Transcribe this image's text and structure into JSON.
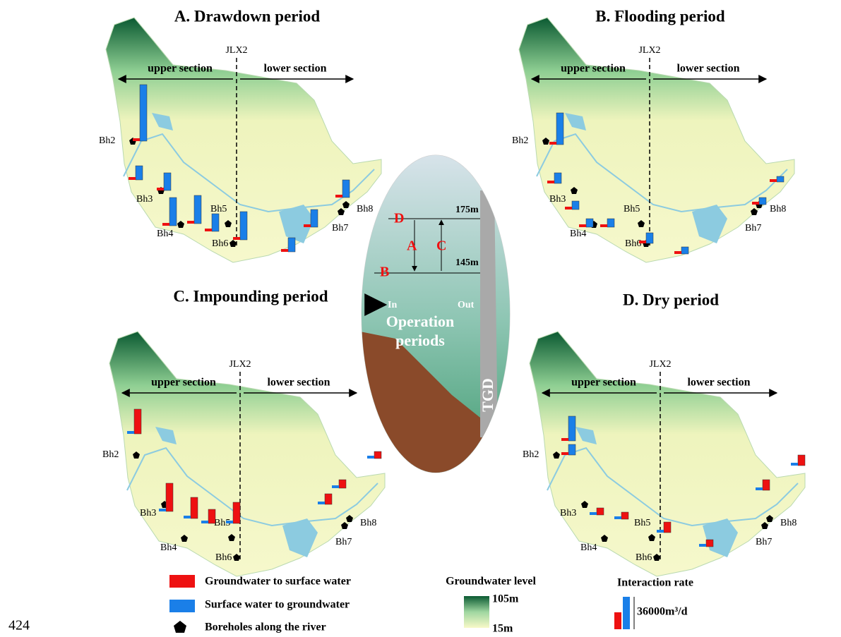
{
  "panels": [
    {
      "title": "A. Drawdown period",
      "site": "JLX2",
      "upper": "upper section",
      "lower": "lower section",
      "boreholes": [
        "Bh2",
        "Bh3",
        "Bh4",
        "Bh5",
        "Bh6",
        "Bh7",
        "Bh8"
      ]
    },
    {
      "title": "B. Flooding period",
      "site": "JLX2",
      "upper": "upper section",
      "lower": "lower section",
      "boreholes": [
        "Bh2",
        "Bh3",
        "Bh4",
        "Bh5",
        "Bh6",
        "Bh7",
        "Bh8"
      ]
    },
    {
      "title": "C. Impounding period",
      "site": "JLX2",
      "upper": "upper section",
      "lower": "lower section",
      "boreholes": [
        "Bh2",
        "Bh3",
        "Bh4",
        "Bh5",
        "Bh6",
        "Bh7",
        "Bh8"
      ]
    },
    {
      "title": "D. Dry  period",
      "site": "JLX2",
      "upper": "upper section",
      "lower": "lower section",
      "boreholes": [
        "Bh2",
        "Bh3",
        "Bh4",
        "Bh5",
        "Bh6",
        "Bh7",
        "Bh8"
      ]
    }
  ],
  "center": {
    "levels": [
      "D",
      "A",
      "C",
      "B"
    ],
    "high": "175m",
    "low": "145m",
    "in": "In",
    "out": "Out",
    "caption": [
      "Operation",
      "periods"
    ],
    "dam": "TGD"
  },
  "legend": {
    "gw_to_sw": "Groundwater to surface water",
    "sw_to_gw": "Surface water to groundwater",
    "boreholes": "Boreholes along the river",
    "level_title": "Groundwater level",
    "level_max": "105m",
    "level_min": "15m",
    "rate_title": "Interaction rate",
    "rate_scale": "36000m³/d"
  },
  "page_number": "424"
}
